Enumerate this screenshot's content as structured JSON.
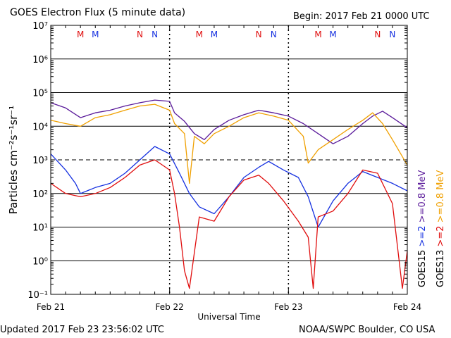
{
  "header": {
    "title": "GOES Electron Flux (5 minute data)",
    "begin": "Begin: 2017 Feb 21 0000 UTC"
  },
  "footer": {
    "updated": "Updated 2017 Feb 23 23:56:02 UTC",
    "credit": "NOAA/SWPC Boulder, CO USA"
  },
  "colors": {
    "blue": "#1530e0",
    "red": "#e00d0d",
    "purple": "#5a1a9a",
    "orange": "#f0a000",
    "grid": "#000000"
  },
  "chart_data": {
    "type": "line",
    "title": "GOES Electron Flux (5 minute data)",
    "xlabel": "Universal Time",
    "ylabel": "Particles cm⁻²s⁻¹sr⁻¹",
    "y_scale": "log",
    "ylim": [
      0.1,
      10000000
    ],
    "xlim": [
      "2017-02-21T00:00",
      "2017-02-24T00:00"
    ],
    "x_ticks": [
      "Feb 21",
      "Feb 22",
      "Feb 23",
      "Feb 24"
    ],
    "y_ticks": [
      "10⁻¹",
      "10⁰",
      "10¹",
      "10²",
      "10³",
      "10⁴",
      "10⁵",
      "10⁶",
      "10⁷"
    ],
    "grid": true,
    "dashed_reference_line": 1000,
    "midnight_noon_markers": [
      {
        "label": "M",
        "time": "2017-02-21T06:00",
        "satellite": "GOES13"
      },
      {
        "label": "M",
        "time": "2017-02-21T09:00",
        "satellite": "GOES15"
      },
      {
        "label": "N",
        "time": "2017-02-21T18:00",
        "satellite": "GOES13"
      },
      {
        "label": "N",
        "time": "2017-02-21T21:00",
        "satellite": "GOES15"
      },
      {
        "label": "M",
        "time": "2017-02-22T06:00",
        "satellite": "GOES13"
      },
      {
        "label": "M",
        "time": "2017-02-22T09:00",
        "satellite": "GOES15"
      },
      {
        "label": "N",
        "time": "2017-02-22T18:00",
        "satellite": "GOES13"
      },
      {
        "label": "N",
        "time": "2017-02-22T21:00",
        "satellite": "GOES15"
      },
      {
        "label": "M",
        "time": "2017-02-23T06:00",
        "satellite": "GOES13"
      },
      {
        "label": "M",
        "time": "2017-02-23T09:00",
        "satellite": "GOES15"
      },
      {
        "label": "N",
        "time": "2017-02-23T18:00",
        "satellite": "GOES13"
      },
      {
        "label": "N",
        "time": "2017-02-23T21:00",
        "satellite": "GOES15"
      }
    ],
    "legend": {
      "placement": "right-vertical",
      "groups": [
        {
          "label": "GOES15",
          "items": [
            {
              "label": ">=2",
              "color": "#1530e0"
            },
            {
              "label": ">=0.8 MeV",
              "color": "#5a1a9a"
            }
          ]
        },
        {
          "label": "GOES13",
          "items": [
            {
              "label": ">=2",
              "color": "#e00d0d"
            },
            {
              "label": ">=0.8 MeV",
              "color": "#f0a000"
            }
          ]
        }
      ]
    },
    "series": [
      {
        "name": "GOES15 >=0.8 MeV",
        "color": "#5a1a9a",
        "x": [
          "2017-02-21T00:00",
          "2017-02-21T03:00",
          "2017-02-21T06:00",
          "2017-02-21T09:00",
          "2017-02-21T12:00",
          "2017-02-21T15:00",
          "2017-02-21T18:00",
          "2017-02-21T21:00",
          "2017-02-22T00:00",
          "2017-02-22T01:00",
          "2017-02-22T03:00",
          "2017-02-22T05:00",
          "2017-02-22T07:00",
          "2017-02-22T09:00",
          "2017-02-22T12:00",
          "2017-02-22T15:00",
          "2017-02-22T18:00",
          "2017-02-22T21:00",
          "2017-02-23T00:00",
          "2017-02-23T03:00",
          "2017-02-23T06:00",
          "2017-02-23T09:00",
          "2017-02-23T12:00",
          "2017-02-23T15:00",
          "2017-02-23T17:00",
          "2017-02-23T19:00",
          "2017-02-23T21:00",
          "2017-02-24T00:00"
        ],
        "y": [
          50000,
          35000,
          18000,
          25000,
          30000,
          40000,
          50000,
          60000,
          55000,
          25000,
          14000,
          6000,
          4000,
          8000,
          15000,
          22000,
          30000,
          25000,
          20000,
          12000,
          6000,
          3000,
          5000,
          12000,
          20000,
          28000,
          18000,
          9000
        ]
      },
      {
        "name": "GOES13 >=0.8 MeV",
        "color": "#f0a000",
        "x": [
          "2017-02-21T00:00",
          "2017-02-21T03:00",
          "2017-02-21T06:00",
          "2017-02-21T09:00",
          "2017-02-21T12:00",
          "2017-02-21T15:00",
          "2017-02-21T18:00",
          "2017-02-21T21:00",
          "2017-02-22T00:00",
          "2017-02-22T01:00",
          "2017-02-22T03:00",
          "2017-02-22T04:00",
          "2017-02-22T05:00",
          "2017-02-22T07:00",
          "2017-02-22T09:00",
          "2017-02-22T12:00",
          "2017-02-22T15:00",
          "2017-02-22T18:00",
          "2017-02-22T21:00",
          "2017-02-23T00:00",
          "2017-02-23T03:00",
          "2017-02-23T04:00",
          "2017-02-23T06:00",
          "2017-02-23T09:00",
          "2017-02-23T12:00",
          "2017-02-23T15:00",
          "2017-02-23T17:00",
          "2017-02-23T19:00",
          "2017-02-23T21:00",
          "2017-02-24T00:00"
        ],
        "y": [
          15000,
          12000,
          10000,
          18000,
          22000,
          30000,
          40000,
          45000,
          30000,
          12000,
          6000,
          200,
          5000,
          3000,
          6000,
          10000,
          18000,
          25000,
          20000,
          15000,
          5000,
          800,
          2000,
          4000,
          8000,
          15000,
          25000,
          12000,
          4000,
          700
        ]
      },
      {
        "name": "GOES15 >=2",
        "color": "#1530e0",
        "x": [
          "2017-02-21T00:00",
          "2017-02-21T03:00",
          "2017-02-21T05:00",
          "2017-02-21T06:00",
          "2017-02-21T09:00",
          "2017-02-21T12:00",
          "2017-02-21T15:00",
          "2017-02-21T18:00",
          "2017-02-21T21:00",
          "2017-02-22T00:00",
          "2017-02-22T02:00",
          "2017-02-22T04:00",
          "2017-02-22T06:00",
          "2017-02-22T09:00",
          "2017-02-22T12:00",
          "2017-02-22T15:00",
          "2017-02-22T18:00",
          "2017-02-22T20:00",
          "2017-02-22T23:00",
          "2017-02-23T02:00",
          "2017-02-23T04:00",
          "2017-02-23T06:00",
          "2017-02-23T09:00",
          "2017-02-23T12:00",
          "2017-02-23T15:00",
          "2017-02-23T18:00",
          "2017-02-23T21:00",
          "2017-02-24T00:00"
        ],
        "y": [
          1500,
          500,
          200,
          100,
          150,
          200,
          400,
          1000,
          2500,
          1500,
          400,
          100,
          40,
          25,
          80,
          300,
          600,
          900,
          500,
          300,
          80,
          10,
          60,
          200,
          450,
          300,
          200,
          120
        ]
      },
      {
        "name": "GOES13 >=2",
        "color": "#e00d0d",
        "x": [
          "2017-02-21T00:00",
          "2017-02-21T03:00",
          "2017-02-21T06:00",
          "2017-02-21T09:00",
          "2017-02-21T12:00",
          "2017-02-21T15:00",
          "2017-02-21T18:00",
          "2017-02-21T21:00",
          "2017-02-22T00:00",
          "2017-02-22T01:00",
          "2017-02-22T02:00",
          "2017-02-22T03:00",
          "2017-02-22T04:00",
          "2017-02-22T06:00",
          "2017-02-22T09:00",
          "2017-02-22T12:00",
          "2017-02-22T15:00",
          "2017-02-22T18:00",
          "2017-02-22T20:00",
          "2017-02-22T23:00",
          "2017-02-23T02:00",
          "2017-02-23T04:00",
          "2017-02-23T05:00",
          "2017-02-23T06:00",
          "2017-02-23T09:00",
          "2017-02-23T12:00",
          "2017-02-23T15:00",
          "2017-02-23T18:00",
          "2017-02-23T21:00",
          "2017-02-23T23:00",
          "2017-02-24T00:00"
        ],
        "y": [
          200,
          100,
          80,
          100,
          150,
          300,
          700,
          1000,
          500,
          100,
          10,
          0.5,
          0.15,
          20,
          15,
          80,
          250,
          350,
          200,
          60,
          15,
          5,
          0.15,
          20,
          30,
          100,
          500,
          400,
          50,
          0.15,
          2
        ]
      }
    ]
  }
}
